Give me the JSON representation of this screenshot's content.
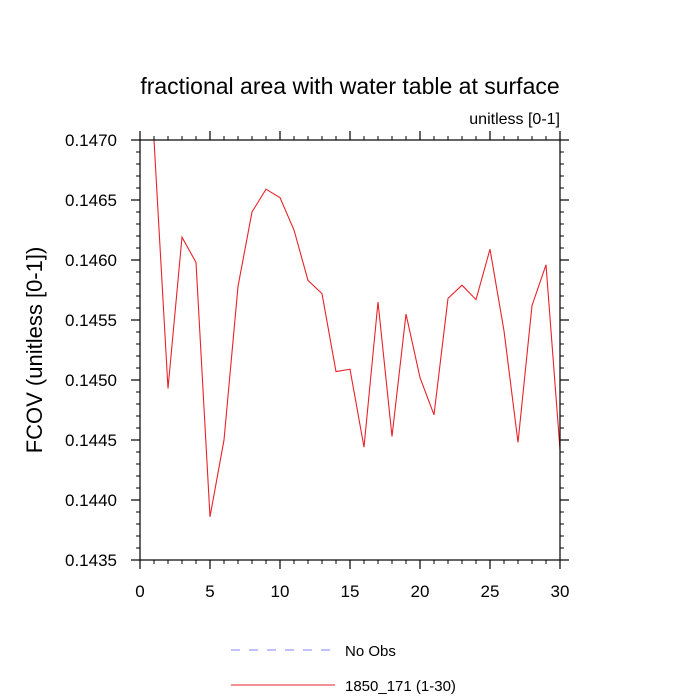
{
  "chart_data": {
    "type": "line",
    "title": "fractional area with water table at surface",
    "subtitle": "unitless [0-1]",
    "ylabel": "FCOV  (unitless [0-1])",
    "xlabel": "",
    "xlim": [
      0,
      30
    ],
    "ylim": [
      0.1435,
      0.147
    ],
    "x_major_ticks": [
      0,
      5,
      10,
      15,
      20,
      25,
      30
    ],
    "x_tick_labels": [
      "0",
      "5",
      "10",
      "15",
      "20",
      "25",
      "30"
    ],
    "y_major_ticks": [
      0.1435,
      0.144,
      0.1445,
      0.145,
      0.1455,
      0.146,
      0.1465,
      0.147
    ],
    "y_tick_labels": [
      "0.1435",
      "0.1440",
      "0.1445",
      "0.1450",
      "0.1455",
      "0.1460",
      "0.1465",
      "0.1470"
    ],
    "x_minor_step": 1,
    "y_minor_step": 0.0001,
    "grid": false,
    "legend_position": "bottom",
    "series": [
      {
        "name": "No Obs",
        "color": "#8080ff",
        "dashed": true,
        "x": [],
        "y": []
      },
      {
        "name": "1850_171 (1-30)",
        "color": "#e8222a",
        "dashed": false,
        "x": [
          1,
          2,
          3,
          4,
          5,
          6,
          7,
          8,
          9,
          10,
          11,
          12,
          13,
          14,
          15,
          16,
          17,
          18,
          19,
          20,
          21,
          22,
          23,
          24,
          25,
          26,
          27,
          28,
          29,
          30
        ],
        "y": [
          0.147,
          0.14493,
          0.14619,
          0.14598,
          0.14386,
          0.1445,
          0.14578,
          0.1464,
          0.14659,
          0.14652,
          0.14625,
          0.14583,
          0.14572,
          0.14507,
          0.14509,
          0.14444,
          0.14565,
          0.14453,
          0.14555,
          0.14502,
          0.14471,
          0.14568,
          0.14579,
          0.14567,
          0.14609,
          0.14541,
          0.14448,
          0.14562,
          0.14596,
          0.14442
        ]
      }
    ]
  }
}
